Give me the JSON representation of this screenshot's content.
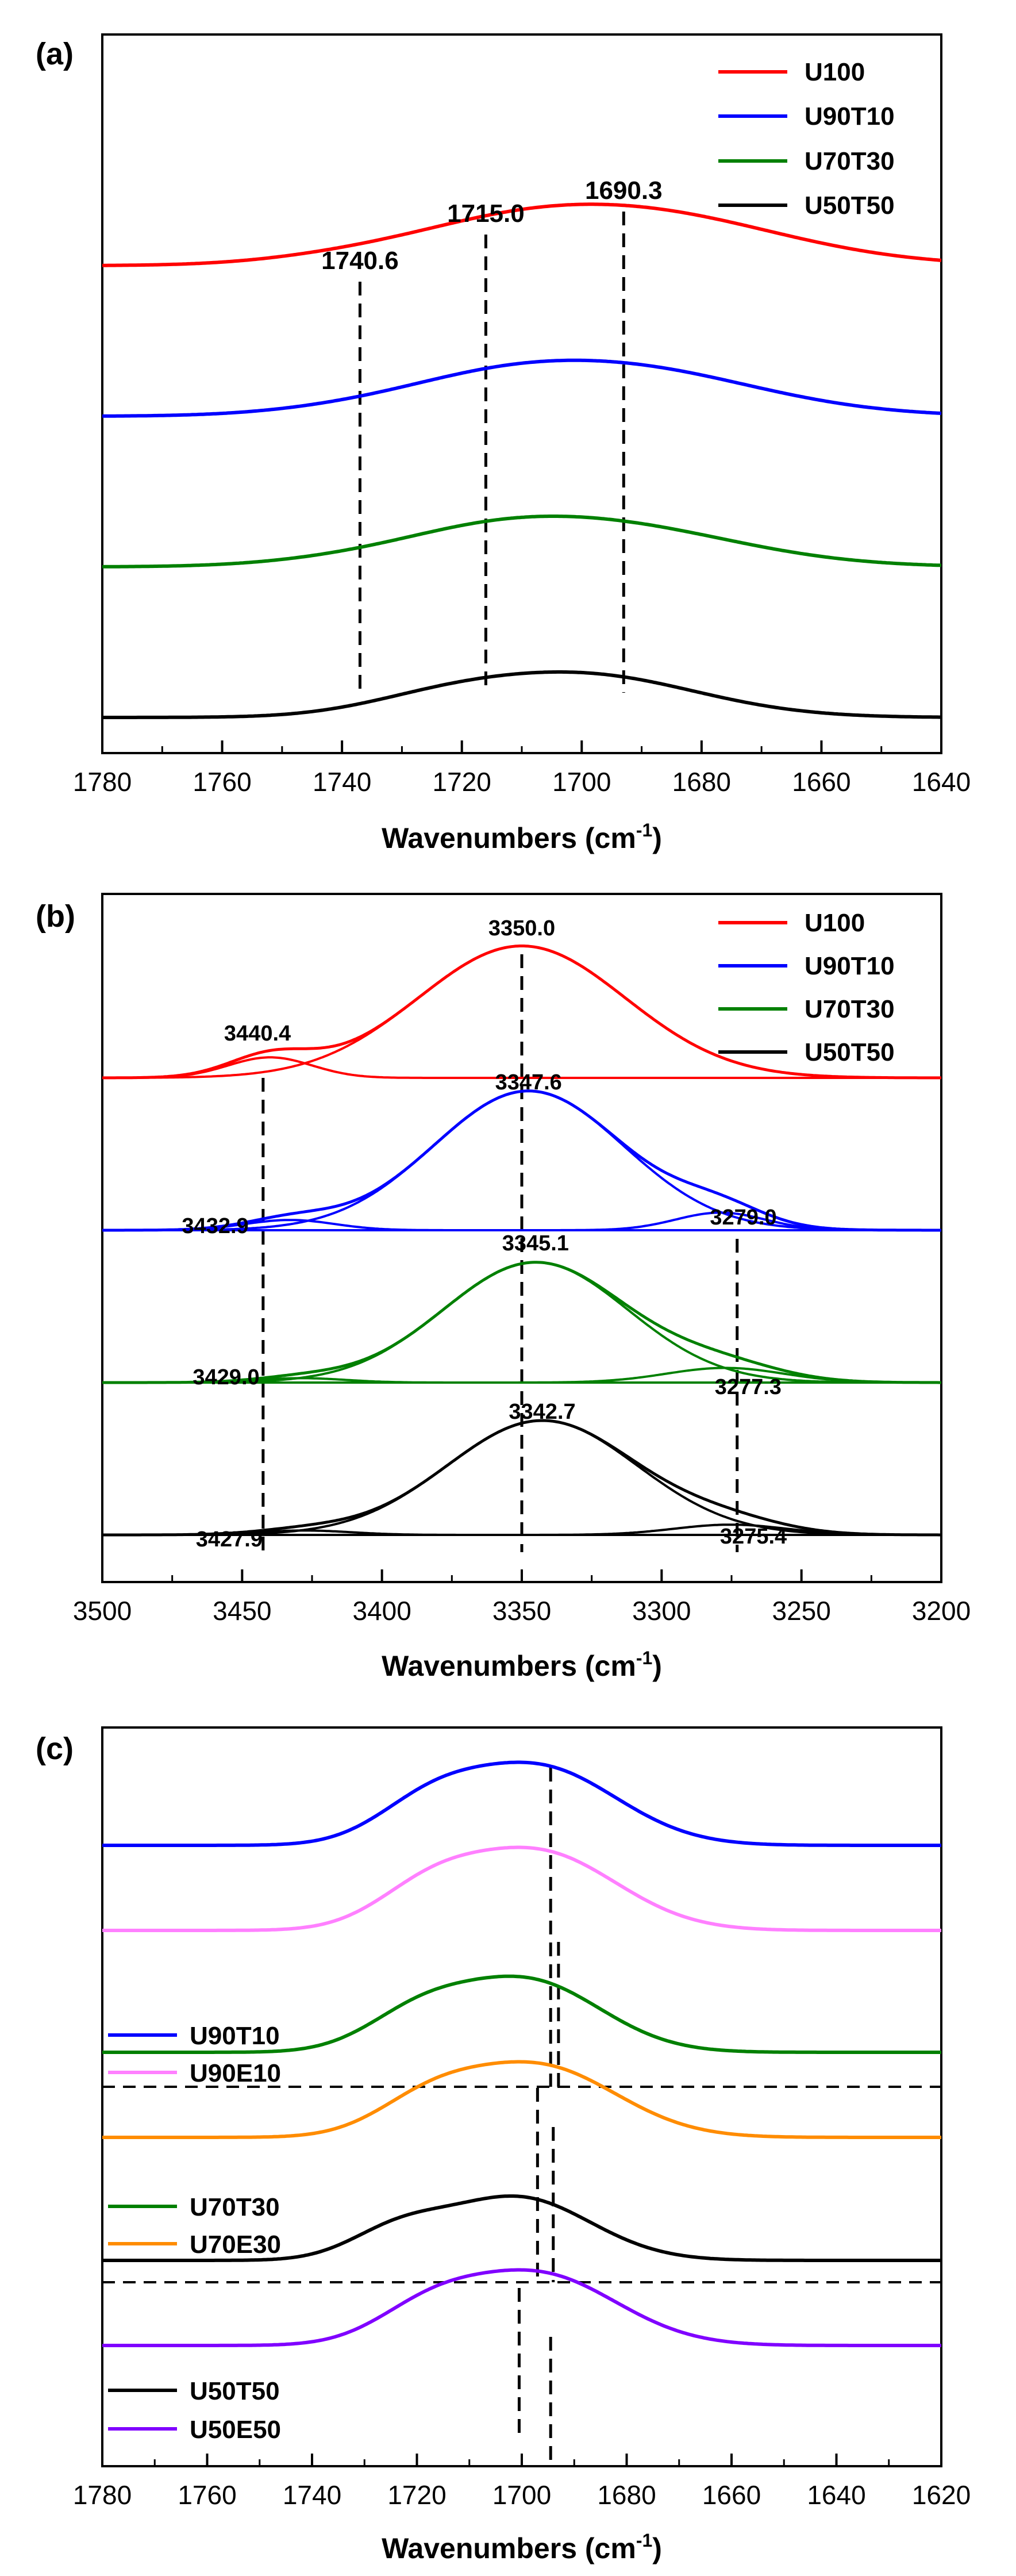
{
  "chart_data": [
    {
      "type": "line",
      "panel_label": "(a)",
      "xlabel": "Wavenumbers (cm⁻¹)",
      "xlabel_main": "Wavenumbers (cm",
      "xlabel_sup": "-1",
      "xlabel_close": ")",
      "ylabel": "",
      "xlim": [
        1780,
        1640
      ],
      "x_ticks": [
        1780,
        1760,
        1740,
        1720,
        1700,
        1680,
        1660,
        1640
      ],
      "legend_position": "top-right",
      "series": [
        {
          "name": "U100",
          "color": "#ff0000",
          "offset": 3,
          "peaks": [
            {
              "c": 1692,
              "w": 24,
              "h": 0.36
            },
            {
              "c": 1716,
              "w": 16,
              "h": 0.1
            },
            {
              "c": 1740,
              "w": 14,
              "h": 0.04
            }
          ]
        },
        {
          "name": "U90T10",
          "color": "#0000ff",
          "offset": 2,
          "peaks": [
            {
              "c": 1695,
              "w": 23,
              "h": 0.33
            },
            {
              "c": 1718,
              "w": 15,
              "h": 0.09
            },
            {
              "c": 1740,
              "w": 14,
              "h": 0.03
            }
          ]
        },
        {
          "name": "U70T30",
          "color": "#008000",
          "offset": 1,
          "peaks": [
            {
              "c": 1697,
              "w": 22,
              "h": 0.28
            },
            {
              "c": 1718,
              "w": 15,
              "h": 0.1
            },
            {
              "c": 1740,
              "w": 14,
              "h": 0.03
            }
          ]
        },
        {
          "name": "U50T50",
          "color": "#000000",
          "offset": 0,
          "peaks": [
            {
              "c": 1700,
              "w": 19,
              "h": 0.28
            },
            {
              "c": 1724,
              "w": 13,
              "h": 0.08
            }
          ]
        }
      ],
      "annotations": [
        {
          "label": "1740.6",
          "x": 1737
        },
        {
          "label": "1715.0",
          "x": 1716
        },
        {
          "label": "1690.3",
          "x": 1693
        }
      ]
    },
    {
      "type": "line",
      "panel_label": "(b)",
      "xlabel": "Wavenumbers (cm⁻¹)",
      "xlabel_main": "Wavenumbers (cm",
      "xlabel_sup": "-1",
      "xlabel_close": ")",
      "ylabel": "",
      "xlim": [
        3500,
        3200
      ],
      "x_ticks": [
        3500,
        3450,
        3400,
        3350,
        3300,
        3250,
        3200
      ],
      "legend_position": "top-right",
      "series": [
        {
          "name": "U100",
          "color": "#ff0000",
          "offset": 3,
          "peaks": [
            {
              "c": 3350,
              "w": 37,
              "h": 0.9
            },
            {
              "c": 3440,
              "w": 15,
              "h": 0.14
            }
          ]
        },
        {
          "name": "U90T10",
          "color": "#0000ff",
          "offset": 2,
          "peaks": [
            {
              "c": 3347.6,
              "w": 34,
              "h": 0.95
            },
            {
              "c": 3432.9,
              "w": 16,
              "h": 0.07
            },
            {
              "c": 3279,
              "w": 16,
              "h": 0.12
            }
          ]
        },
        {
          "name": "U70T30",
          "color": "#008000",
          "offset": 1,
          "peaks": [
            {
              "c": 3345.1,
              "w": 33,
              "h": 0.82
            },
            {
              "c": 3429,
              "w": 16,
              "h": 0.03
            },
            {
              "c": 3277.3,
              "w": 21,
              "h": 0.1
            }
          ]
        },
        {
          "name": "U50T50",
          "color": "#000000",
          "offset": 0,
          "peaks": [
            {
              "c": 3342.7,
              "w": 34,
              "h": 0.78
            },
            {
              "c": 3427.9,
              "w": 17,
              "h": 0.03
            },
            {
              "c": 3275.4,
              "w": 20,
              "h": 0.07
            }
          ]
        }
      ],
      "annotations": [
        {
          "label": "3440.4",
          "x": 3442.5
        },
        {
          "label": "3350.0",
          "x": 3350
        },
        {
          "label": "3347.6",
          "x": 3350
        },
        {
          "label": "3432.9",
          "x": 3442.5
        },
        {
          "label": "3279.0",
          "x": 3273
        },
        {
          "label": "3345.1",
          "x": 3350
        },
        {
          "label": "3429.0",
          "x": 3442.5
        },
        {
          "label": "3277.3",
          "x": 3273
        },
        {
          "label": "3342.7",
          "x": 3350
        },
        {
          "label": "3427.9",
          "x": 3442.5
        },
        {
          "label": "3275.4",
          "x": 3273
        }
      ]
    },
    {
      "type": "line",
      "panel_label": "(c)",
      "xlabel": "Wavenumbers (cm⁻¹)",
      "xlabel_main": "Wavenumbers (cm",
      "xlabel_sup": "-1",
      "xlabel_close": ")",
      "ylabel": "",
      "xlim": [
        1780,
        1620
      ],
      "x_ticks": [
        1780,
        1760,
        1740,
        1720,
        1700,
        1680,
        1660,
        1640,
        1620
      ],
      "legend_position": "left",
      "series": [
        {
          "name": "U90T10",
          "color": "#0000ff",
          "offset": 7,
          "peaks": [
            {
              "c": 1697,
              "w": 15,
              "h": 0.68
            },
            {
              "c": 1718,
              "w": 10,
              "h": 0.28
            }
          ]
        },
        {
          "name": "U90E10",
          "color": "#ff80ff",
          "offset": 6,
          "peaks": [
            {
              "c": 1697,
              "w": 15,
              "h": 0.68
            },
            {
              "c": 1718,
              "w": 10,
              "h": 0.28
            }
          ]
        },
        {
          "name": "U70T30",
          "color": "#008000",
          "offset": 4.6,
          "peaks": [
            {
              "c": 1699,
              "w": 14,
              "h": 0.62
            },
            {
              "c": 1720,
              "w": 10,
              "h": 0.28
            }
          ]
        },
        {
          "name": "U70E30",
          "color": "#ff8c00",
          "offset": 3.6,
          "peaks": [
            {
              "c": 1697,
              "w": 15,
              "h": 0.62
            },
            {
              "c": 1718,
              "w": 10,
              "h": 0.25
            }
          ]
        },
        {
          "name": "U50T50",
          "color": "#000000",
          "offset": 2.2,
          "peaks": [
            {
              "c": 1701,
              "w": 14,
              "h": 0.55
            },
            {
              "c": 1724,
              "w": 9,
              "h": 0.22
            }
          ]
        },
        {
          "name": "U50E50",
          "color": "#8000ff",
          "offset": 1.2,
          "peaks": [
            {
              "c": 1697,
              "w": 15,
              "h": 0.62
            },
            {
              "c": 1718,
              "w": 10,
              "h": 0.25
            }
          ]
        }
      ],
      "markers": [
        1694.5,
        1693,
        1697,
        1694,
        1700.5,
        1694.5
      ]
    }
  ]
}
